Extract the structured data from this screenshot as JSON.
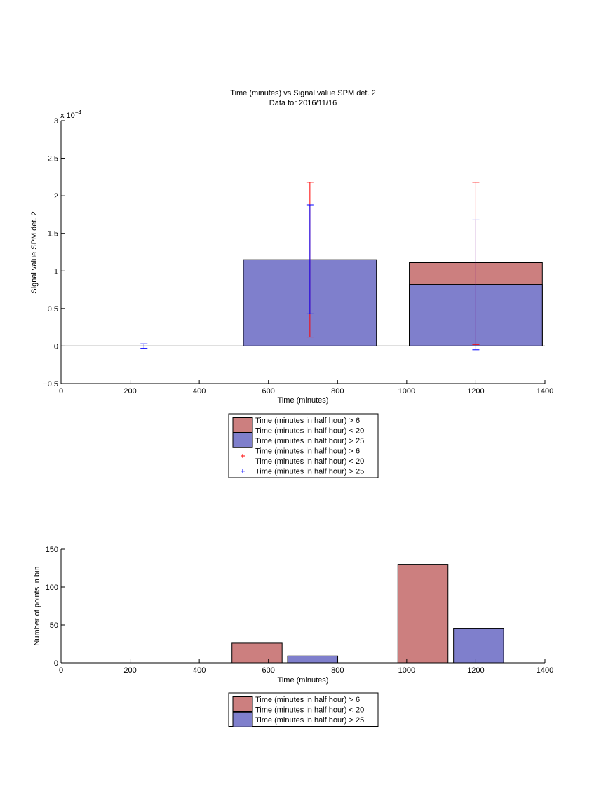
{
  "chart_data": [
    {
      "type": "bar",
      "title": "Time (minutes) vs Signal value SPM det. 2",
      "subtitle": "Data for 2016/11/16",
      "xlabel": "Time (minutes)",
      "ylabel": "Signal value SPM det. 2",
      "y_exponent_label": "x 10",
      "y_exponent_power": "−4",
      "xlim": [
        0,
        1400
      ],
      "ylim": [
        -0.5,
        3
      ],
      "xticks": [
        0,
        200,
        400,
        600,
        800,
        1000,
        1200,
        1400
      ],
      "yticks": [
        -0.5,
        0,
        0.5,
        1,
        1.5,
        2,
        2.5,
        3
      ],
      "xtick_labels": [
        "0",
        "200",
        "400",
        "600",
        "800",
        "1000",
        "1200",
        "1400"
      ],
      "ytick_labels": [
        "−0.5",
        "0",
        "0.5",
        "1",
        "1.5",
        "2",
        "2.5",
        "3"
      ],
      "grid": false,
      "bars": [
        {
          "x": 720,
          "value": 1.15,
          "series": "blue"
        },
        {
          "x": 1200,
          "value": 1.11,
          "series": "red"
        },
        {
          "x": 1200,
          "value": 0.82,
          "series": "blue"
        }
      ],
      "bar_width": 385,
      "errorbars": [
        {
          "x": 720,
          "low": 0.12,
          "high": 2.18,
          "series": "red"
        },
        {
          "x": 1200,
          "low": 0.02,
          "high": 2.18,
          "series": "red"
        },
        {
          "x": 240,
          "low": -0.03,
          "high": 0.03,
          "series": "blue"
        },
        {
          "x": 720,
          "low": 0.43,
          "high": 1.88,
          "series": "blue"
        },
        {
          "x": 1200,
          "low": -0.05,
          "high": 1.68,
          "series": "blue"
        }
      ],
      "legend": {
        "placement": "below",
        "entries": [
          {
            "kind": "patch",
            "color": "#cc7f7f",
            "lines": [
              "Time (minutes in half hour) > 6",
              "Time (minutes in half hour) < 20"
            ]
          },
          {
            "kind": "patch",
            "color": "#7f7fcc",
            "lines": [
              "Time (minutes in half hour) > 25"
            ]
          },
          {
            "kind": "marker",
            "color": "#ff0000",
            "lines": [
              "Time (minutes in half hour) > 6",
              "Time (minutes in half hour) < 20"
            ]
          },
          {
            "kind": "marker",
            "color": "#0000ff",
            "lines": [
              "Time (minutes in half hour) > 25"
            ]
          }
        ]
      }
    },
    {
      "type": "bar",
      "xlabel": "Time (minutes)",
      "ylabel": "Number of points in bin",
      "xlim": [
        0,
        1400
      ],
      "ylim": [
        0,
        150
      ],
      "xticks": [
        0,
        200,
        400,
        600,
        800,
        1000,
        1200,
        1400
      ],
      "yticks": [
        0,
        50,
        100,
        150
      ],
      "xtick_labels": [
        "0",
        "200",
        "400",
        "600",
        "800",
        "1000",
        "1200",
        "1400"
      ],
      "ytick_labels": [
        "0",
        "50",
        "100",
        "150"
      ],
      "grid": false,
      "bars": [
        {
          "x": 567,
          "width": 145,
          "value": 26,
          "series": "red"
        },
        {
          "x": 728,
          "width": 145,
          "value": 9,
          "series": "blue"
        },
        {
          "x": 1047,
          "width": 145,
          "value": 130,
          "series": "red"
        },
        {
          "x": 1208,
          "width": 145,
          "value": 45,
          "series": "blue"
        }
      ],
      "legend": {
        "placement": "below",
        "entries": [
          {
            "kind": "patch",
            "color": "#cc7f7f",
            "lines": [
              "Time (minutes in half hour) > 6",
              "Time (minutes in half hour) < 20"
            ]
          },
          {
            "kind": "patch",
            "color": "#7f7fcc",
            "lines": [
              "Time (minutes in half hour) > 25"
            ]
          }
        ]
      }
    }
  ],
  "colors": {
    "red_fill": "#cc7f7f",
    "blue_fill": "#7f7fcc",
    "red_err": "#ff0000",
    "blue_err": "#0000ff"
  }
}
